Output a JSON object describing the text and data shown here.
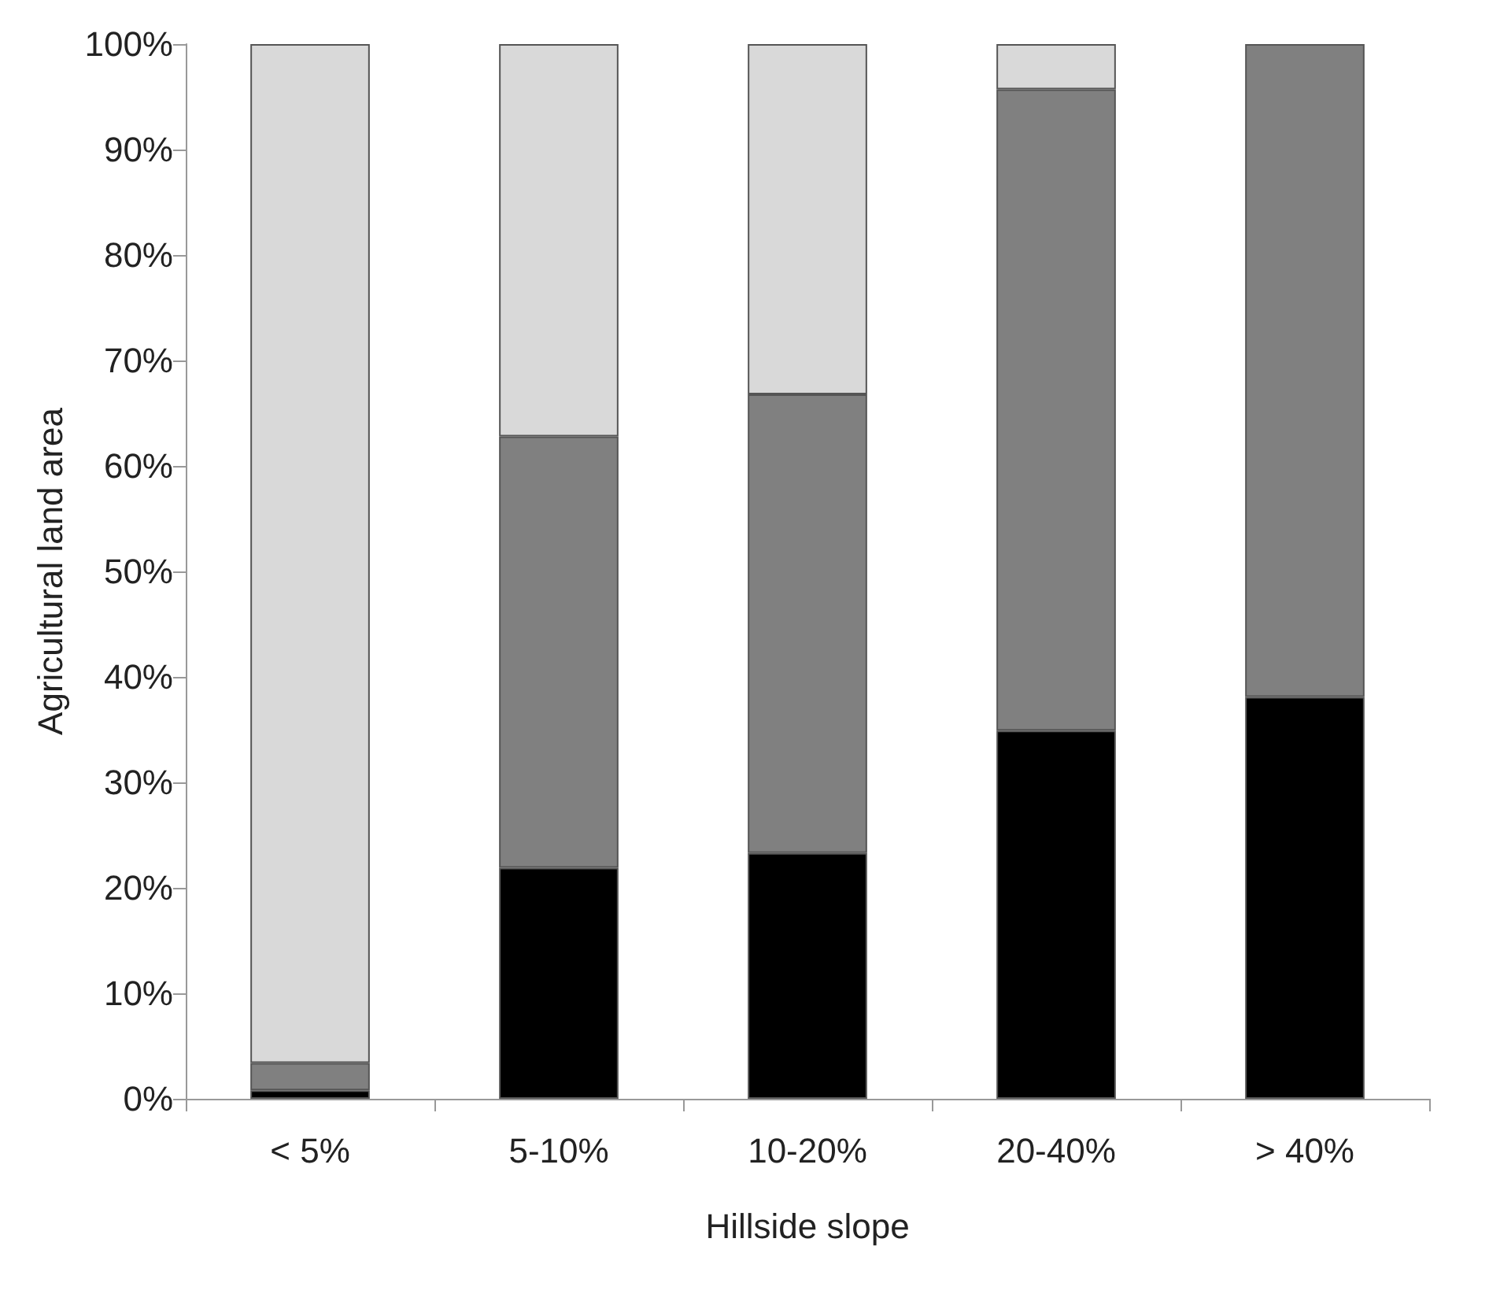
{
  "chart_data": {
    "type": "bar",
    "stacked": true,
    "xlabel": "Hillside slope",
    "ylabel": "Agricultural land area",
    "categories": [
      "< 5%",
      "5-10%",
      "10-20%",
      "20-40%",
      "> 40%"
    ],
    "series": [
      {
        "color": "#000000",
        "values": [
          0.8,
          21.9,
          23.3,
          34.9,
          38.1
        ]
      },
      {
        "color": "#808080",
        "values": [
          2.6,
          40.9,
          43.5,
          60.8,
          61.9
        ]
      },
      {
        "color": "#d9d9d9",
        "values": [
          96.6,
          37.2,
          33.2,
          4.3,
          0
        ]
      }
    ],
    "ylim": [
      0,
      100
    ],
    "yticks": [
      {
        "value": 0,
        "label": "0%"
      },
      {
        "value": 10,
        "label": "10%"
      },
      {
        "value": 20,
        "label": "20%"
      },
      {
        "value": 30,
        "label": "30%"
      },
      {
        "value": 40,
        "label": "40%"
      },
      {
        "value": 50,
        "label": "50%"
      },
      {
        "value": 60,
        "label": "60%"
      },
      {
        "value": 70,
        "label": "70%"
      },
      {
        "value": 80,
        "label": "80%"
      },
      {
        "value": 90,
        "label": "90%"
      },
      {
        "value": 100,
        "label": "100%"
      }
    ],
    "grid": false
  }
}
